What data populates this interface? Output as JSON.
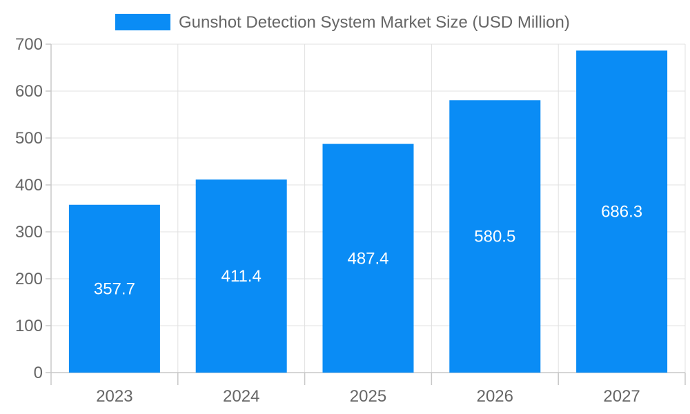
{
  "chart_data": {
    "type": "bar",
    "categories": [
      "2023",
      "2024",
      "2025",
      "2026",
      "2027"
    ],
    "series": [
      {
        "name": "Gunshot Detection System Market Size (USD Million)",
        "values": [
          357.7,
          411.4,
          487.4,
          580.5,
          686.3
        ],
        "color": "#0a8cf5"
      }
    ],
    "data_labels": [
      "357.7",
      "411.4",
      "487.4",
      "580.5",
      "686.3"
    ],
    "ylim": [
      0,
      700
    ],
    "yticks": [
      0,
      100,
      200,
      300,
      400,
      500,
      600,
      700
    ],
    "grid": true,
    "legend_position": "top-center",
    "colors": {
      "bar": "#0a8cf5",
      "text": "#666666",
      "grid": "#e0e0e0",
      "data_label": "#ffffff"
    }
  }
}
